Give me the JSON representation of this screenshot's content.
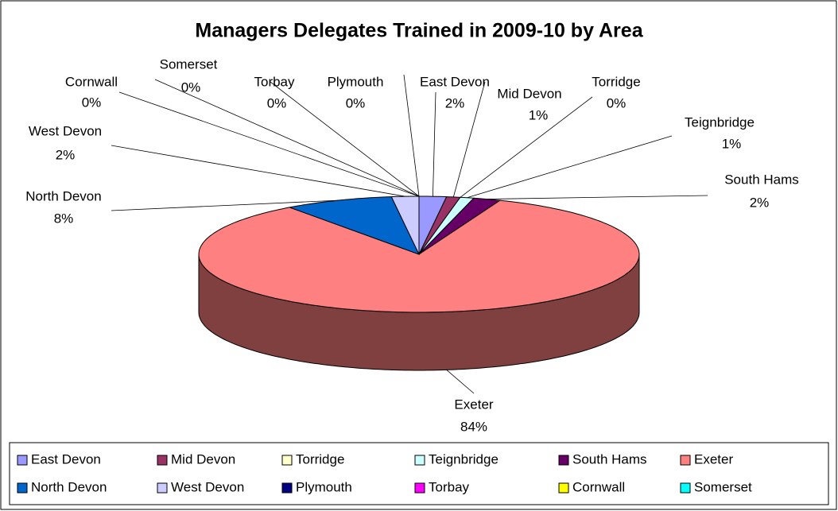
{
  "chart_data": {
    "type": "pie3d",
    "title": "Managers Delegates Trained in 2009-10 by Area",
    "categories": [
      "East Devon",
      "Mid Devon",
      "Torridge",
      "Teignbridge",
      "South Hams",
      "Exeter",
      "North Devon",
      "West Devon",
      "Plymouth",
      "Torbay",
      "Cornwall",
      "Somerset"
    ],
    "values": [
      2,
      1,
      0,
      1,
      2,
      84,
      8,
      2,
      0,
      0,
      0,
      0
    ],
    "value_labels": [
      "2%",
      "1%",
      "0%",
      "1%",
      "2%",
      "84%",
      "8%",
      "2%",
      "0%",
      "0%",
      "0%",
      "0%"
    ],
    "colors": [
      "#9999ff",
      "#993366",
      "#ffffcc",
      "#ccffff",
      "#660066",
      "#ff8080",
      "#0066cc",
      "#ccccff",
      "#000080",
      "#ff00ff",
      "#ffff00",
      "#00ffff"
    ],
    "legend": "bottom"
  }
}
